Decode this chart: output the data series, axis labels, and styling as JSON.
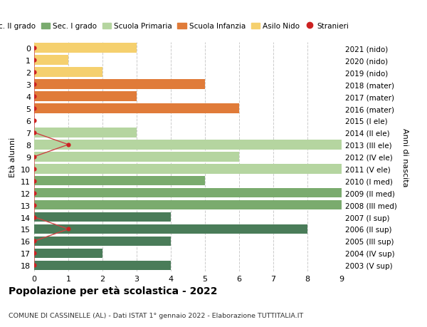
{
  "ages": [
    18,
    17,
    16,
    15,
    14,
    13,
    12,
    11,
    10,
    9,
    8,
    7,
    6,
    5,
    4,
    3,
    2,
    1,
    0
  ],
  "years": [
    "2003 (V sup)",
    "2004 (IV sup)",
    "2005 (III sup)",
    "2006 (II sup)",
    "2007 (I sup)",
    "2008 (III med)",
    "2009 (II med)",
    "2010 (I med)",
    "2011 (V ele)",
    "2012 (IV ele)",
    "2013 (III ele)",
    "2014 (II ele)",
    "2015 (I ele)",
    "2016 (mater)",
    "2017 (mater)",
    "2018 (mater)",
    "2019 (nido)",
    "2020 (nido)",
    "2021 (nido)"
  ],
  "bar_values": [
    4,
    2,
    4,
    8,
    4,
    9,
    9,
    5,
    9,
    6,
    9,
    3,
    0,
    6,
    3,
    5,
    2,
    1,
    3
  ],
  "bar_colors": [
    "#4a7c59",
    "#4a7c59",
    "#4a7c59",
    "#4a7c59",
    "#4a7c59",
    "#7aab6e",
    "#7aab6e",
    "#7aab6e",
    "#b5d5a0",
    "#b5d5a0",
    "#b5d5a0",
    "#b5d5a0",
    "#b5d5a0",
    "#e07b39",
    "#e07b39",
    "#e07b39",
    "#f5d06e",
    "#f5d06e",
    "#f5d06e"
  ],
  "stranieri_values": [
    0,
    0,
    0,
    1,
    0,
    0,
    0,
    0,
    0,
    0,
    1,
    0,
    0,
    0,
    0,
    0,
    0,
    0,
    0
  ],
  "stranieri_color": "#cc2222",
  "stranieri_line_color": "#cc4444",
  "legend_labels": [
    "Sec. II grado",
    "Sec. I grado",
    "Scuola Primaria",
    "Scuola Infanzia",
    "Asilo Nido",
    "Stranieri"
  ],
  "legend_colors": [
    "#4a7c59",
    "#7aab6e",
    "#b5d5a0",
    "#e07b39",
    "#f5d06e",
    "#cc2222"
  ],
  "ylabel_left": "Età alunni",
  "ylabel_right": "Anni di nascita",
  "title": "Popolazione per età scolastica - 2022",
  "subtitle": "COMUNE DI CASSINELLE (AL) - Dati ISTAT 1° gennaio 2022 - Elaborazione TUTTITALIA.IT",
  "xlim": [
    0,
    9
  ],
  "xticks": [
    0,
    1,
    2,
    3,
    4,
    5,
    6,
    7,
    8,
    9
  ],
  "grid_color": "#cccccc",
  "bg_color": "#ffffff",
  "bar_height": 0.8
}
